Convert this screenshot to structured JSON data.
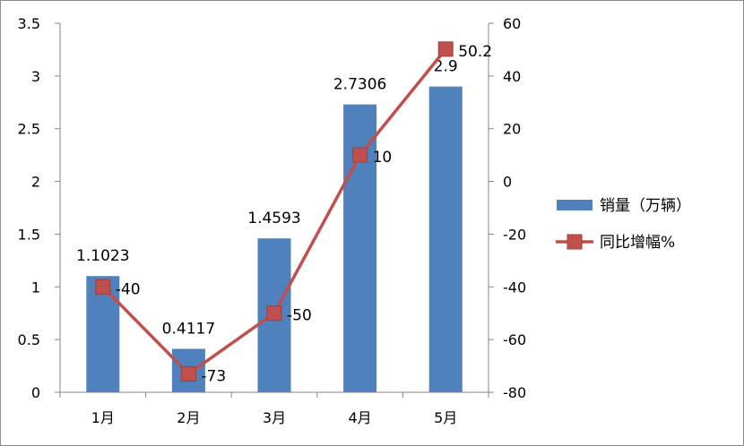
{
  "chart_data": {
    "type": "bar",
    "categories": [
      "1月",
      "2月",
      "3月",
      "4月",
      "5月"
    ],
    "series": [
      {
        "name": "销量（万辆）",
        "type": "bar",
        "axis": "left",
        "values": [
          1.1023,
          0.4117,
          1.4593,
          2.7306,
          2.9
        ],
        "labels": [
          "1.1023",
          "0.4117",
          "1.4593",
          "2.7306",
          "2.9"
        ],
        "color": "#4F81BD"
      },
      {
        "name": "同比增幅%",
        "type": "line",
        "axis": "right",
        "values": [
          -40,
          -73,
          -50,
          10,
          50.2
        ],
        "labels": [
          "-40",
          "-73",
          "-50",
          "10",
          "50.2"
        ],
        "color": "#C0504D"
      }
    ],
    "y_left": {
      "min": 0,
      "max": 3.5,
      "ticks": [
        0,
        0.5,
        1,
        1.5,
        2,
        2.5,
        3,
        3.5
      ],
      "tick_labels": [
        "0",
        "0.5",
        "1",
        "1.5",
        "2",
        "2.5",
        "3",
        "3.5"
      ]
    },
    "y_right": {
      "min": -80,
      "max": 60,
      "ticks": [
        -80,
        -60,
        -40,
        -20,
        0,
        20,
        40,
        60
      ],
      "tick_labels": [
        "-80",
        "-60",
        "-40",
        "-20",
        "0",
        "20",
        "40",
        "60"
      ]
    },
    "grid": false,
    "legend": "right",
    "title": "",
    "xlabel": "",
    "ylabel": ""
  }
}
